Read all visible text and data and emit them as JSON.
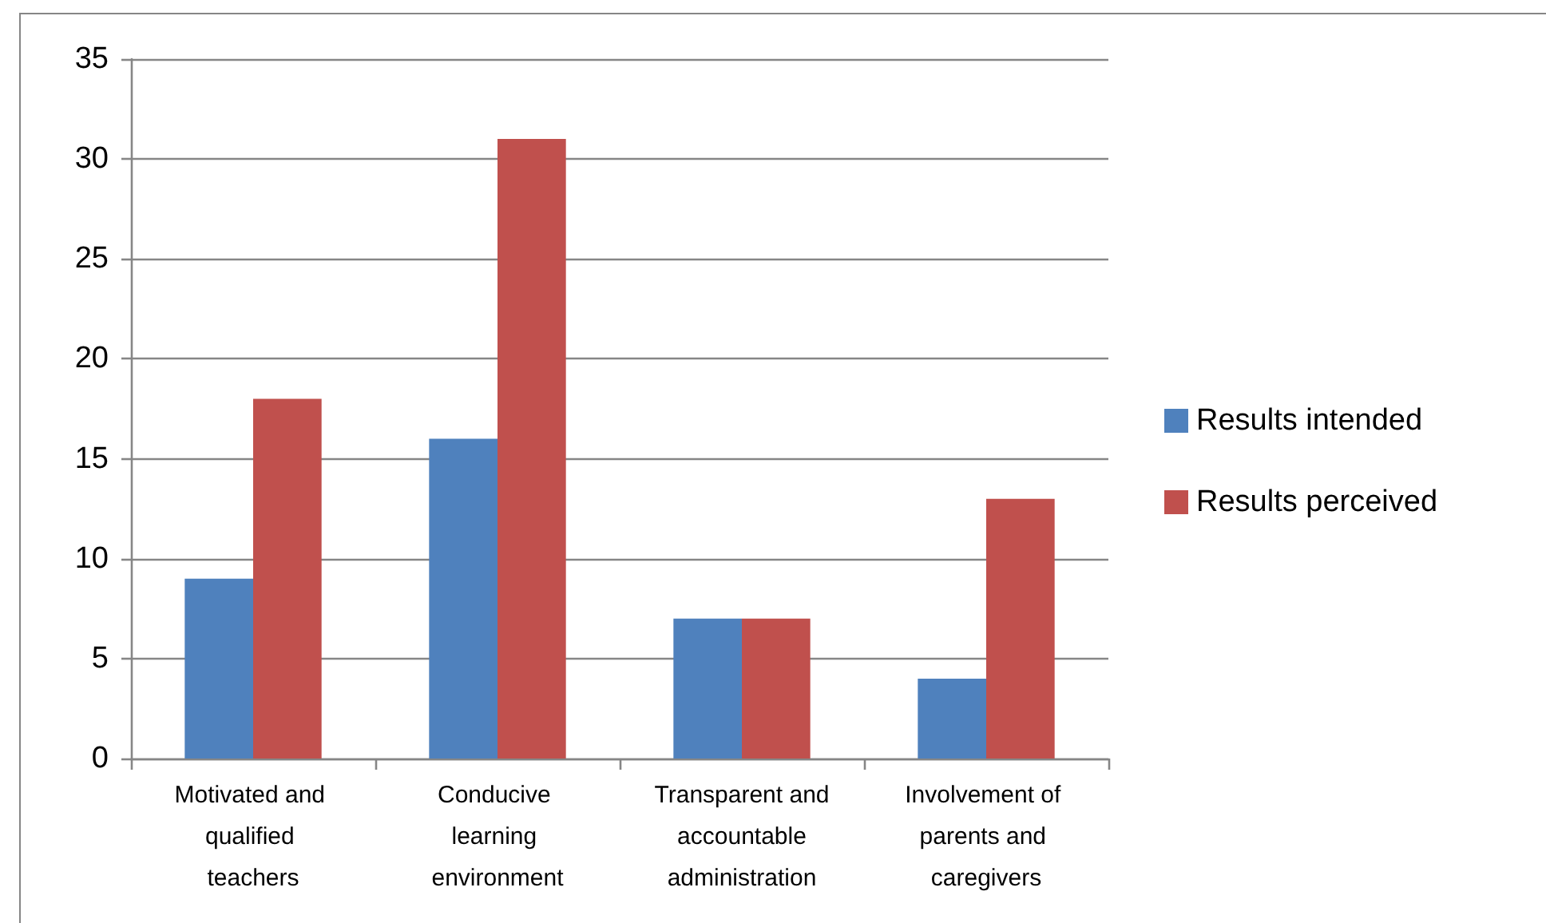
{
  "chart_data": {
    "type": "bar",
    "categories": [
      "Motivated and qualified teachers",
      "Conducive learning environment",
      "Transparent and accountable administration",
      "Involvement of parents and caregivers"
    ],
    "series": [
      {
        "name": "Results intended",
        "color": "#4f81bd",
        "values": [
          9,
          16,
          7,
          4
        ]
      },
      {
        "name": "Results perceived",
        "color": "#c0504d",
        "values": [
          18,
          31,
          7,
          13
        ]
      }
    ],
    "ylim": [
      0,
      35
    ],
    "yticks": [
      0,
      5,
      10,
      15,
      20,
      25,
      30,
      35
    ],
    "grid": "y",
    "legend": "right"
  }
}
